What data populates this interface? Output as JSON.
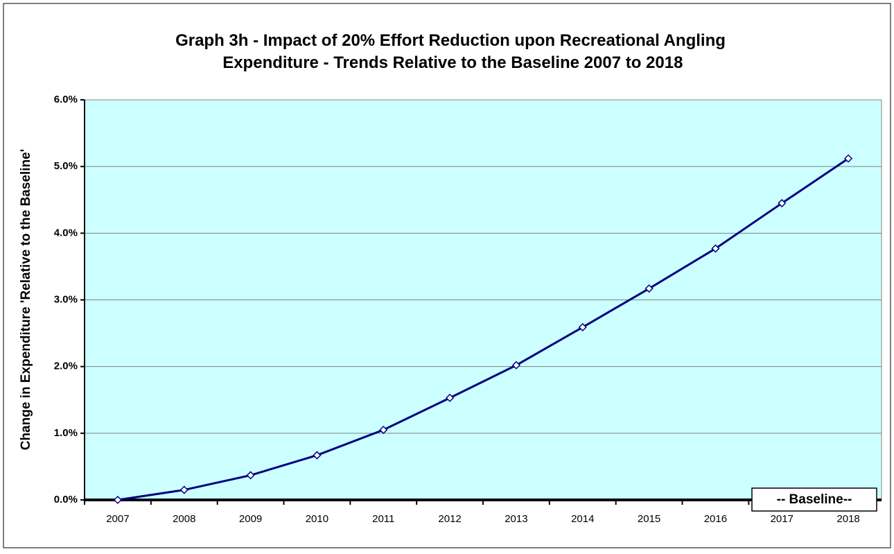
{
  "chart_data": {
    "type": "line",
    "title": "Graph 3h - Impact of 20% Effort Reduction upon Recreational Angling Expenditure - Trends Relative to the Baseline 2007 to 2018",
    "y_label": "Change in Expenditure 'Relative to the Baseline'",
    "annotation": "-- Baseline--",
    "categories": [
      "2007",
      "2008",
      "2009",
      "2010",
      "2011",
      "2012",
      "2013",
      "2014",
      "2015",
      "2016",
      "2017",
      "2018"
    ],
    "series": [
      {
        "color": "#000080",
        "values": [
          0,
          0.15,
          0.37,
          0.67,
          1.05,
          1.53,
          2.02,
          2.59,
          3.17,
          3.77,
          4.45,
          5.12
        ]
      }
    ],
    "ylim": [
      0,
      6
    ],
    "yticks": [
      {
        "value": 0,
        "label": "0.0%"
      },
      {
        "value": 1,
        "label": "1.0%"
      },
      {
        "value": 2,
        "label": "2.0%"
      },
      {
        "value": 3,
        "label": "3.0%"
      },
      {
        "value": 4,
        "label": "4.0%"
      },
      {
        "value": 5,
        "label": "5.0%"
      },
      {
        "value": 6,
        "label": "6.0%"
      }
    ],
    "grid": true,
    "plot_background": "#ccffff"
  }
}
